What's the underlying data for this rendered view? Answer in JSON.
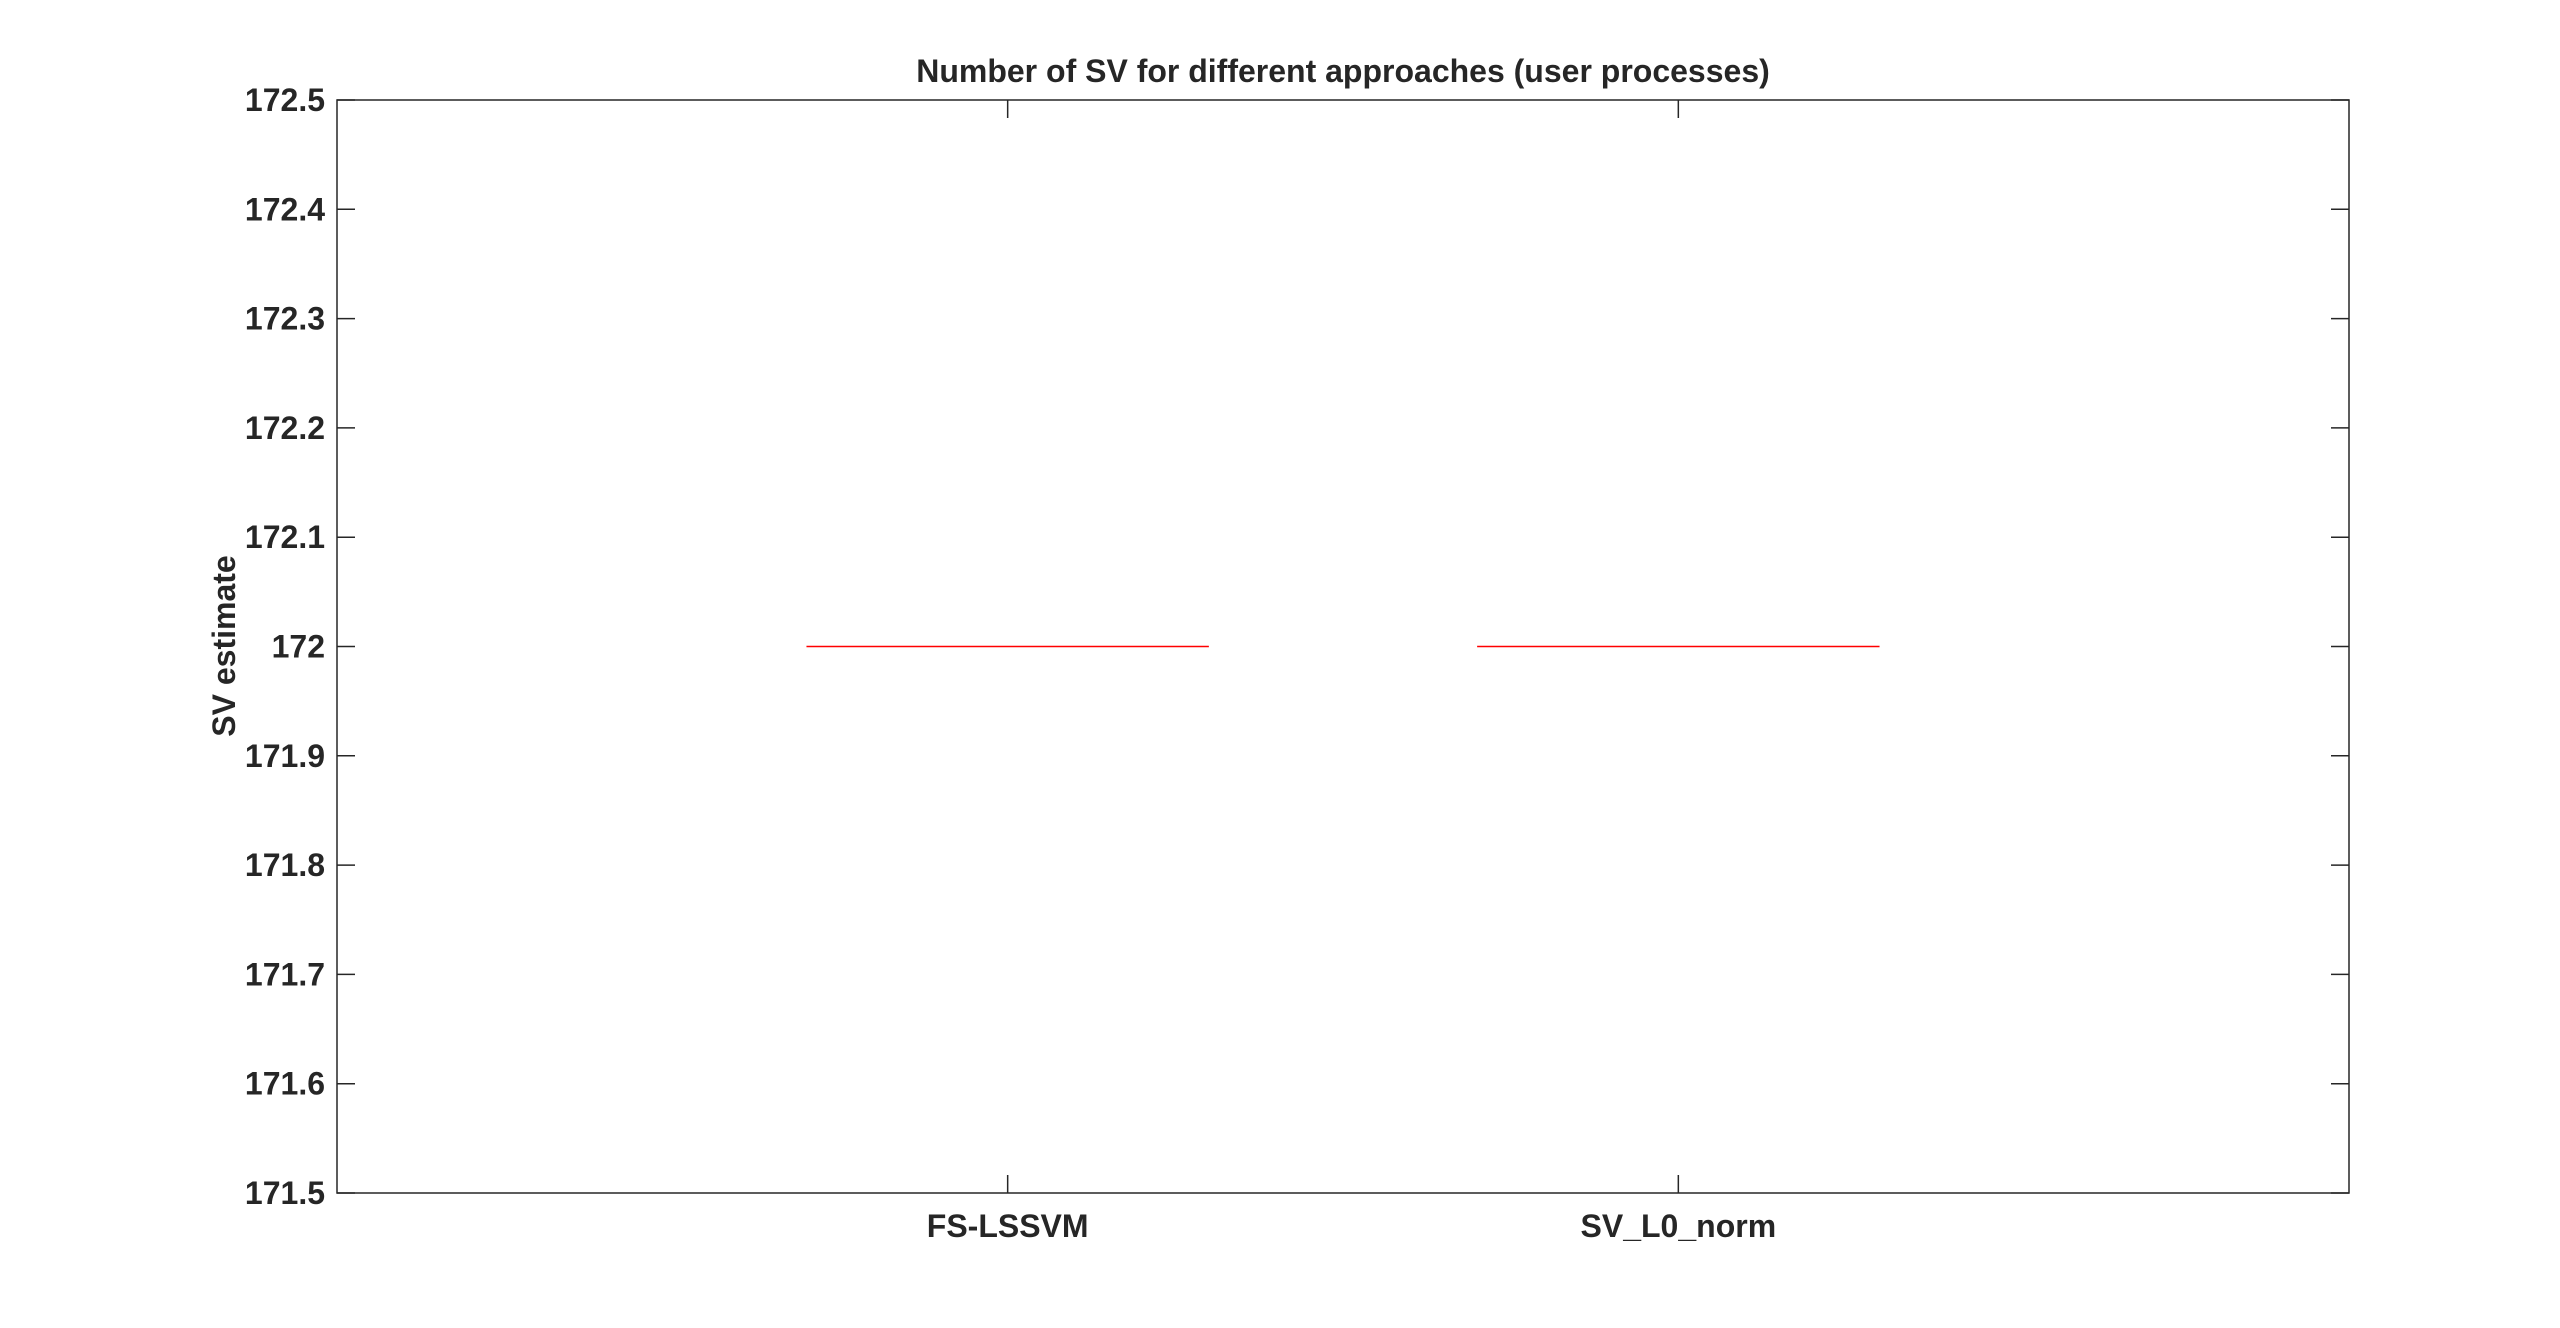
{
  "chart_data": {
    "type": "boxplot",
    "title": "Number of SV for different approaches (user processes)",
    "xlabel": "",
    "ylabel": "SV estimate",
    "categories": [
      "FS-LSSVM",
      "SV_L0_norm"
    ],
    "series": [
      {
        "values": [
          172,
          172
        ]
      }
    ],
    "ylim": [
      171.5,
      172.5
    ],
    "yticks": [
      171.5,
      171.6,
      171.7,
      171.8,
      171.9,
      172,
      172.1,
      172.2,
      172.3,
      172.4,
      172.5
    ],
    "ytick_labels": [
      "171.5",
      "171.6",
      "171.7",
      "171.8",
      "171.9",
      "172",
      "172.1",
      "172.2",
      "172.3",
      "172.4",
      "172.5"
    ],
    "grid": false,
    "legend": "none",
    "colors": {
      "median": "#ff0000",
      "axes": "#262626",
      "background": "#ffffff"
    }
  }
}
